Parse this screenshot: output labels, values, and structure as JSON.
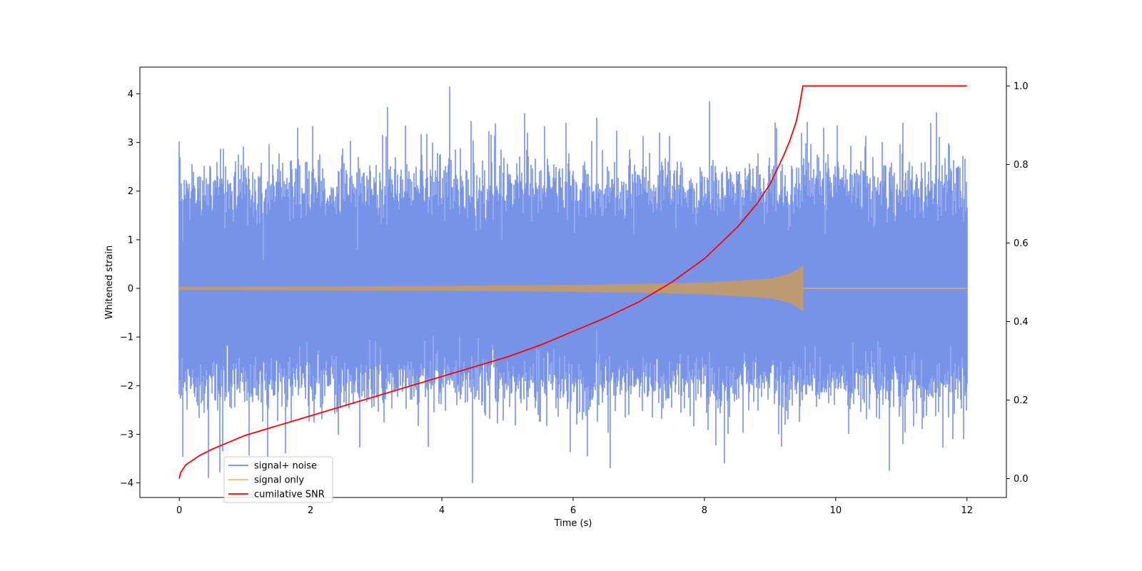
{
  "chart_data": {
    "type": "line",
    "title": "",
    "xlabel": "Time (s)",
    "ylabel": "Whitened strain",
    "y2label": "",
    "xlim": [
      -0.6,
      12.6
    ],
    "ylim": [
      -4.3,
      4.55
    ],
    "y2lim": [
      -0.048,
      1.048
    ],
    "xticks": [
      0,
      2,
      4,
      6,
      8,
      10,
      12
    ],
    "yticks": [
      -4,
      -3,
      -2,
      -1,
      0,
      1,
      2,
      3,
      4
    ],
    "y2ticks": [
      0.0,
      0.2,
      0.4,
      0.6,
      0.8,
      1.0
    ],
    "y2tick_labels": [
      "0.0",
      "0.2",
      "0.4",
      "0.6",
      "0.8",
      "1.0"
    ],
    "grid": false,
    "legend_position": "lower-left",
    "series": [
      {
        "name": "signal+ noise",
        "color": "#6b8ae6",
        "axis": "left",
        "kind": "noise",
        "t_range": [
          0,
          12
        ],
        "typical_amplitude": [
          -2.0,
          2.2
        ],
        "extremes": [
          {
            "t": 0.44,
            "y": -3.9
          },
          {
            "t": 4.12,
            "y": 4.15
          },
          {
            "t": 8.08,
            "y": 3.85
          },
          {
            "t": 6.57,
            "y": -3.7
          },
          {
            "t": 10.82,
            "y": -3.75
          },
          {
            "t": 8.3,
            "y": -3.6
          },
          {
            "t": 6.22,
            "y": -3.45
          },
          {
            "t": 3.45,
            "y": 3.35
          },
          {
            "t": 10.02,
            "y": 3.35
          },
          {
            "t": 11.45,
            "y": 3.4
          },
          {
            "t": 9.1,
            "y": 3.3
          },
          {
            "t": 11.95,
            "y": -3.1
          }
        ]
      },
      {
        "name": "signal only",
        "color": "#f5b96a",
        "axis": "left",
        "kind": "chirp",
        "t_start": 0,
        "t_merger": 9.5,
        "t_end": 12,
        "envelope": [
          {
            "t": 0,
            "a": 0.035
          },
          {
            "t": 2,
            "a": 0.04
          },
          {
            "t": 4,
            "a": 0.05
          },
          {
            "t": 6,
            "a": 0.07
          },
          {
            "t": 7,
            "a": 0.09
          },
          {
            "t": 8,
            "a": 0.12
          },
          {
            "t": 9,
            "a": 0.2
          },
          {
            "t": 9.3,
            "a": 0.3
          },
          {
            "t": 9.45,
            "a": 0.42
          },
          {
            "t": 9.5,
            "a": 0.48
          }
        ]
      },
      {
        "name": "cumilative SNR",
        "color": "#ff0000",
        "axis": "right",
        "kind": "line",
        "x": [
          0,
          0.02,
          0.1,
          0.3,
          0.5,
          1,
          1.5,
          2,
          2.5,
          3,
          3.5,
          4,
          4.5,
          5,
          5.5,
          6,
          6.5,
          7,
          7.5,
          8,
          8.5,
          8.8,
          9,
          9.2,
          9.3,
          9.4,
          9.45,
          9.5,
          12
        ],
        "values": [
          0.0,
          0.015,
          0.035,
          0.058,
          0.075,
          0.11,
          0.135,
          0.16,
          0.185,
          0.21,
          0.235,
          0.26,
          0.285,
          0.31,
          0.34,
          0.375,
          0.41,
          0.45,
          0.5,
          0.56,
          0.64,
          0.7,
          0.75,
          0.82,
          0.86,
          0.91,
          0.95,
          1.0,
          1.0
        ]
      }
    ]
  }
}
